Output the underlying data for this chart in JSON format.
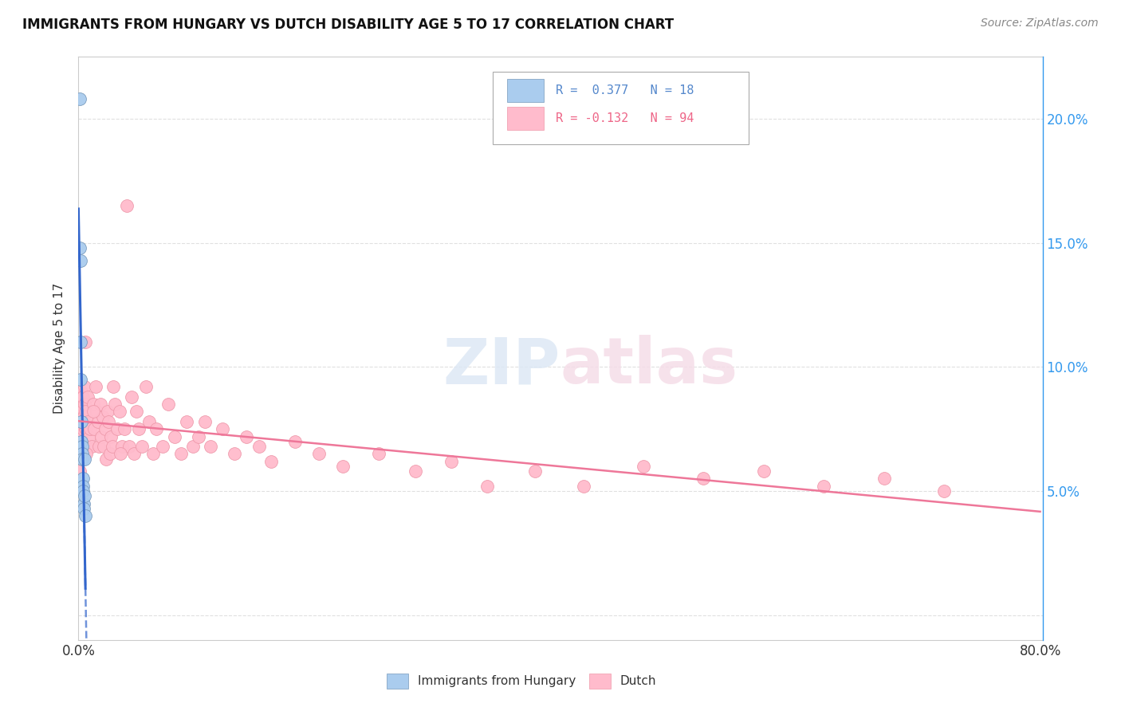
{
  "title": "IMMIGRANTS FROM HUNGARY VS DUTCH DISABILITY AGE 5 TO 17 CORRELATION CHART",
  "source": "Source: ZipAtlas.com",
  "ylabel": "Disability Age 5 to 17",
  "watermark": "ZIPAtlas",
  "xmin": 0.0,
  "xmax": 0.8,
  "ymin": -0.01,
  "ymax": 0.225,
  "legend_blue_r": "R =  0.377",
  "legend_blue_n": "N = 18",
  "legend_pink_r": "R = -0.132",
  "legend_pink_n": "N = 94",
  "blue_color": "#aaccee",
  "blue_edge": "#7799bb",
  "pink_color": "#ffbbcc",
  "pink_edge": "#ee99aa",
  "blue_line_color": "#3366cc",
  "pink_line_color": "#ee7799",
  "grid_color": "#e0e0e0",
  "background_color": "#ffffff",
  "blue_scatter_x": [
    0.001,
    0.0012,
    0.0015,
    0.0018,
    0.002,
    0.0022,
    0.0025,
    0.0028,
    0.003,
    0.0032,
    0.0035,
    0.0038,
    0.004,
    0.0042,
    0.0045,
    0.0048,
    0.0052,
    0.0058
  ],
  "blue_scatter_y": [
    0.208,
    0.148,
    0.143,
    0.11,
    0.095,
    0.078,
    0.07,
    0.068,
    0.065,
    0.063,
    0.055,
    0.052,
    0.05,
    0.045,
    0.043,
    0.063,
    0.048,
    0.04
  ],
  "pink_scatter_x": [
    0.0008,
    0.001,
    0.0012,
    0.0015,
    0.0018,
    0.002,
    0.0022,
    0.0025,
    0.0028,
    0.003,
    0.0032,
    0.0035,
    0.0038,
    0.004,
    0.0042,
    0.0045,
    0.0048,
    0.005,
    0.0055,
    0.006,
    0.0065,
    0.007,
    0.0075,
    0.008,
    0.009,
    0.01,
    0.011,
    0.012,
    0.013,
    0.014,
    0.015,
    0.016,
    0.017,
    0.018,
    0.019,
    0.02,
    0.021,
    0.022,
    0.023,
    0.024,
    0.025,
    0.026,
    0.027,
    0.028,
    0.029,
    0.03,
    0.032,
    0.034,
    0.036,
    0.038,
    0.04,
    0.042,
    0.044,
    0.046,
    0.048,
    0.05,
    0.053,
    0.056,
    0.059,
    0.062,
    0.065,
    0.07,
    0.075,
    0.08,
    0.085,
    0.09,
    0.095,
    0.1,
    0.105,
    0.11,
    0.12,
    0.13,
    0.14,
    0.15,
    0.16,
    0.18,
    0.2,
    0.22,
    0.25,
    0.28,
    0.31,
    0.34,
    0.38,
    0.42,
    0.47,
    0.52,
    0.57,
    0.62,
    0.67,
    0.72,
    0.0055,
    0.0065,
    0.012,
    0.035
  ],
  "pink_scatter_y": [
    0.068,
    0.065,
    0.058,
    0.085,
    0.078,
    0.072,
    0.065,
    0.09,
    0.082,
    0.068,
    0.088,
    0.08,
    0.075,
    0.088,
    0.08,
    0.068,
    0.092,
    0.085,
    0.075,
    0.082,
    0.075,
    0.068,
    0.088,
    0.078,
    0.072,
    0.075,
    0.068,
    0.085,
    0.075,
    0.092,
    0.082,
    0.078,
    0.068,
    0.085,
    0.072,
    0.08,
    0.068,
    0.075,
    0.063,
    0.082,
    0.078,
    0.065,
    0.072,
    0.068,
    0.092,
    0.085,
    0.075,
    0.082,
    0.068,
    0.075,
    0.165,
    0.068,
    0.088,
    0.065,
    0.082,
    0.075,
    0.068,
    0.092,
    0.078,
    0.065,
    0.075,
    0.068,
    0.085,
    0.072,
    0.065,
    0.078,
    0.068,
    0.072,
    0.078,
    0.068,
    0.075,
    0.065,
    0.072,
    0.068,
    0.062,
    0.07,
    0.065,
    0.06,
    0.065,
    0.058,
    0.062,
    0.052,
    0.058,
    0.052,
    0.06,
    0.055,
    0.058,
    0.052,
    0.055,
    0.05,
    0.11,
    0.065,
    0.082,
    0.065
  ]
}
